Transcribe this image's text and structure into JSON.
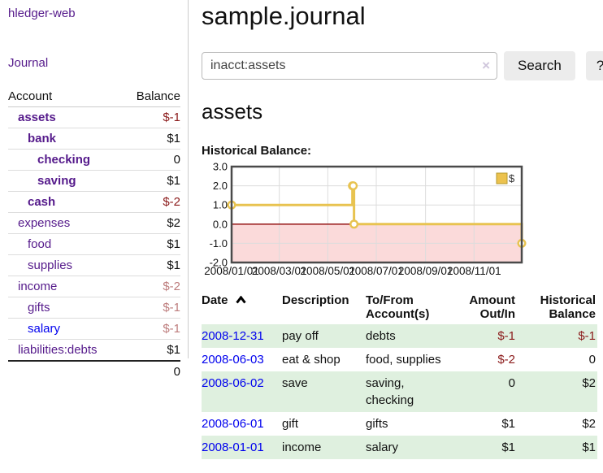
{
  "app": {
    "title": "hledger-web"
  },
  "sidebar": {
    "journal_link": "Journal",
    "accounts_table": {
      "account_header": "Account",
      "balance_header": "Balance",
      "rows": [
        {
          "account": "assets",
          "balance": "$-1",
          "depth": 1,
          "matched": true
        },
        {
          "account": "bank",
          "balance": "$1",
          "depth": 2,
          "matched": true
        },
        {
          "account": "checking",
          "balance": "0",
          "depth": 3,
          "matched": true
        },
        {
          "account": "saving",
          "balance": "$1",
          "depth": 3,
          "matched": true
        },
        {
          "account": "cash",
          "balance": "$-2",
          "depth": 2,
          "matched": true
        },
        {
          "account": "expenses",
          "balance": "$2",
          "depth": 1,
          "matched": false
        },
        {
          "account": "food",
          "balance": "$1",
          "depth": 2,
          "matched": false
        },
        {
          "account": "supplies",
          "balance": "$1",
          "depth": 2,
          "matched": false
        },
        {
          "account": "income",
          "balance": "$-2",
          "depth": 1,
          "matched": false
        },
        {
          "account": "gifts",
          "balance": "$-1",
          "depth": 2,
          "matched": false
        },
        {
          "account": "salary",
          "balance": "$-1",
          "depth": 2,
          "matched": false
        },
        {
          "account": "liabilities:debts",
          "balance": "$1",
          "depth": 1,
          "matched": false
        }
      ],
      "total": "0"
    }
  },
  "header": {
    "title": "sample.journal"
  },
  "search": {
    "value": "inacct:assets",
    "clear_icon": "×",
    "button_label": "Search",
    "help_label": "?"
  },
  "account_page": {
    "title": "assets",
    "chart_label": "Historical Balance:"
  },
  "chart_data": {
    "type": "line",
    "title": "Historical Balance:",
    "legend": {
      "position": "top-right",
      "label": "$"
    },
    "series": [
      {
        "name": "$",
        "color": "#e8c350",
        "step": "after",
        "points": [
          [
            "2008-01-01",
            1
          ],
          [
            "2008-06-01",
            2
          ],
          [
            "2008-06-02",
            2
          ],
          [
            "2008-06-03",
            0
          ],
          [
            "2008-12-31",
            -1
          ]
        ]
      }
    ],
    "xlim": [
      "2008-01-01",
      "2008-12-31"
    ],
    "ylim": [
      -2,
      3
    ],
    "yticks": [
      3,
      2,
      1,
      0,
      -1,
      -2
    ],
    "ytick_labels": [
      "3.0",
      "2.0",
      "1.0",
      "0.0",
      "-1.0",
      "-2.0"
    ],
    "xtick_dates": [
      "2008-01-01",
      "2008-03-01",
      "2008-05-01",
      "2008-07-01",
      "2008-09-01",
      "2008-11-01"
    ],
    "xtick_labels": [
      "2008/01/01",
      "2008/03/01",
      "2008/05/01",
      "2008/07/01",
      "2008/09/01",
      "2008/11/01"
    ],
    "grid": true,
    "negative_region_fill": "#fbdada",
    "zero_line_color": "#8b0000",
    "grid_color": "#dcdcdc",
    "border_color": "#4a4a4a",
    "marker_fill": "#ffffff",
    "legend_square_fill": "#ecc24e",
    "legend_square_stroke": "#b69a2e"
  },
  "register_table": {
    "headers": {
      "date": "Date",
      "description": "Description",
      "accounts": "To/From Account(s)",
      "amount": "Amount Out/In",
      "balance": "Historical Balance"
    },
    "rows": [
      {
        "date": "2008-12-31",
        "description": "pay off",
        "accounts": "debts",
        "amount": "$-1",
        "balance": "$-1"
      },
      {
        "date": "2008-06-03",
        "description": "eat & shop",
        "accounts": "food, supplies",
        "amount": "$-2",
        "balance": "0"
      },
      {
        "date": "2008-06-02",
        "description": "save",
        "accounts": "saving, checking",
        "amount": "0",
        "balance": "$2"
      },
      {
        "date": "2008-06-01",
        "description": "gift",
        "accounts": "gifts",
        "amount": "$1",
        "balance": "$2"
      },
      {
        "date": "2008-01-01",
        "description": "income",
        "accounts": "salary",
        "amount": "$1",
        "balance": "$1"
      }
    ]
  },
  "colors": {
    "link_purple": "#551a8b",
    "link_blue": "#0000ee",
    "negative_strong": "#8b1a1a",
    "negative_muted": "#bd7c7c",
    "row_stripe_green": "#dff0df",
    "series_gold": "#e8c350",
    "button_gray": "#ececec"
  }
}
